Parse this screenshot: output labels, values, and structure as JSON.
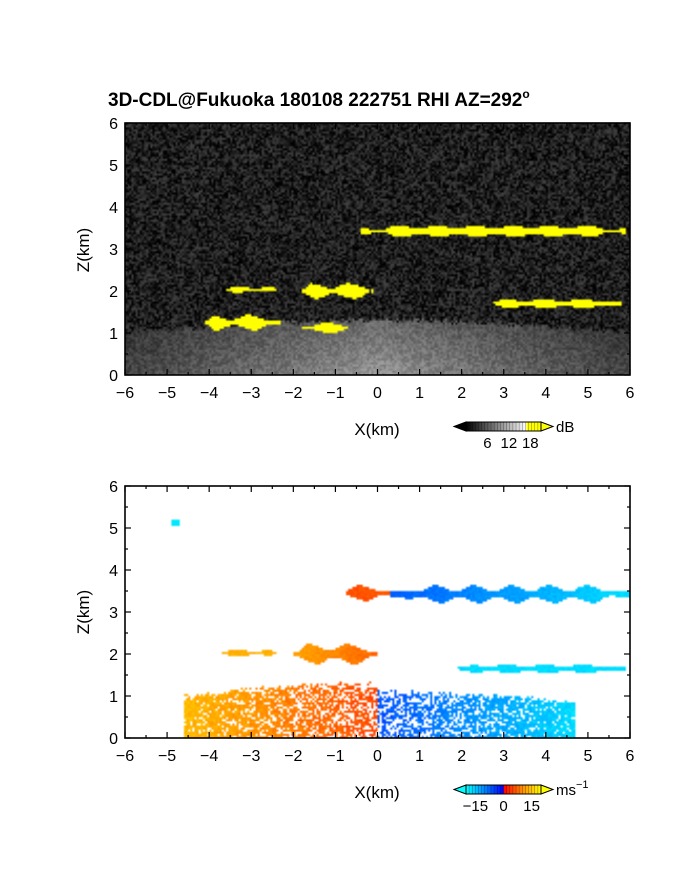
{
  "title": "3D-CDL@Fukuoka 180108 222751 RHI AZ=292",
  "title_superscript": "o",
  "chart_data": [
    {
      "type": "heatmap",
      "quantity": "backscatter intensity (SNR)",
      "xlabel": "X(km)",
      "ylabel": "Z(km)",
      "xlim": [
        -6,
        6
      ],
      "ylim": [
        0,
        6
      ],
      "xticks": [
        "−6",
        "−5",
        "−4",
        "−3",
        "−2",
        "−1",
        "0",
        "1",
        "2",
        "3",
        "4",
        "5",
        "6"
      ],
      "yticks": [
        "0",
        "1",
        "2",
        "3",
        "4",
        "5",
        "6"
      ],
      "colorbar": {
        "unit": "dB",
        "ticks": [
          "6",
          "12",
          "18"
        ],
        "range": [
          0,
          21
        ],
        "colors": [
          "#000000",
          "#ffffff",
          "#ffff00"
        ]
      },
      "features": [
        {
          "kind": "cloud-layer",
          "x": [
            -0.4,
            5.9
          ],
          "z": [
            3.3,
            3.55
          ],
          "value_db": 20
        },
        {
          "kind": "cloud-layer",
          "x": [
            -3.6,
            -2.4
          ],
          "z": [
            1.98,
            2.1
          ],
          "value_db": 20
        },
        {
          "kind": "cloud-layer",
          "x": [
            -1.8,
            -0.1
          ],
          "z": [
            1.85,
            2.15
          ],
          "value_db": 20
        },
        {
          "kind": "cloud-layer",
          "x": [
            2.6,
            5.8
          ],
          "z": [
            1.6,
            1.8
          ],
          "value_db": 20
        },
        {
          "kind": "cloud-layer",
          "x": [
            -4.1,
            -2.3
          ],
          "z": [
            1.1,
            1.4
          ],
          "value_db": 20
        },
        {
          "kind": "cloud-layer",
          "x": [
            -1.8,
            -0.7
          ],
          "z": [
            1.02,
            1.22
          ],
          "value_db": 20
        },
        {
          "kind": "boundary-layer",
          "x": [
            -6,
            6
          ],
          "z": [
            0,
            1.3
          ],
          "value_db": 10
        }
      ],
      "background_db": 2
    },
    {
      "type": "heatmap",
      "quantity": "Doppler velocity",
      "xlabel": "X(km)",
      "ylabel": "Z(km)",
      "xlim": [
        -6,
        6
      ],
      "ylim": [
        0,
        6
      ],
      "xticks": [
        "−6",
        "−5",
        "−4",
        "−3",
        "−2",
        "−1",
        "0",
        "1",
        "2",
        "3",
        "4",
        "5",
        "6"
      ],
      "yticks": [
        "0",
        "1",
        "2",
        "3",
        "4",
        "5",
        "6"
      ],
      "colorbar": {
        "unit": "ms",
        "unit_superscript": "−1",
        "ticks": [
          "−15",
          "0",
          "15"
        ],
        "range": [
          -20,
          20
        ],
        "colors": [
          "#00ffff",
          "#0000ff",
          "#ff0000",
          "#ffff00"
        ]
      },
      "features": [
        {
          "kind": "layer",
          "x": [
            -0.8,
            0.3
          ],
          "z": [
            3.3,
            3.6
          ],
          "velocity": 6
        },
        {
          "kind": "layer",
          "x": [
            0.3,
            6.0
          ],
          "z": [
            3.25,
            3.6
          ],
          "velocity_start": -7,
          "velocity_end": -17
        },
        {
          "kind": "layer",
          "x": [
            -3.7,
            -2.4
          ],
          "z": [
            1.95,
            2.1
          ],
          "velocity": 13
        },
        {
          "kind": "layer",
          "x": [
            -2.0,
            0.0
          ],
          "z": [
            1.8,
            2.2
          ],
          "velocity_start": 12,
          "velocity_end": 7
        },
        {
          "kind": "layer",
          "x": [
            1.9,
            5.9
          ],
          "z": [
            1.55,
            1.75
          ],
          "velocity": -17
        },
        {
          "kind": "boundary-layer",
          "x": [
            -4.6,
            0.0
          ],
          "z": [
            0,
            1.3
          ],
          "velocity_start": 14,
          "velocity_end": 5
        },
        {
          "kind": "boundary-layer",
          "x": [
            0.0,
            4.7
          ],
          "z": [
            0,
            1.1
          ],
          "velocity_start": -6,
          "velocity_end": -17
        },
        {
          "kind": "point",
          "x": -4.8,
          "z": 5.12,
          "velocity": -18
        }
      ]
    }
  ]
}
